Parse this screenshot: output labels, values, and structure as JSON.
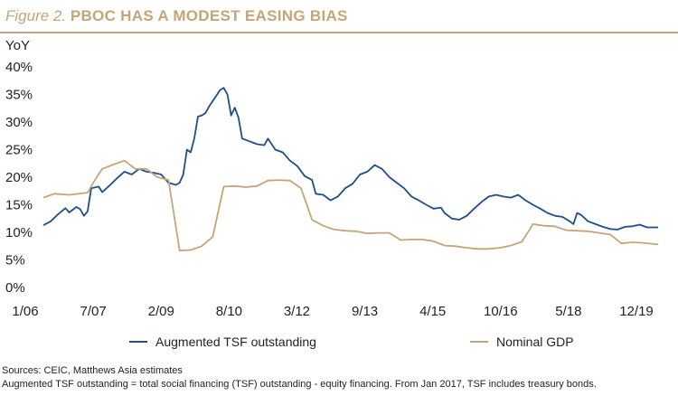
{
  "title_prefix": "Figure 2.",
  "title_main": "PBOC HAS A MODEST EASING BIAS",
  "chart_data": {
    "type": "line",
    "title": "PBOC HAS A MODEST EASING BIAS",
    "ylabel": "YoY",
    "xlabel": "",
    "ylim": [
      0,
      40
    ],
    "xlim": [
      "2006-01",
      "2019-12"
    ],
    "yticks": [
      "0%",
      "5%",
      "10%",
      "15%",
      "20%",
      "25%",
      "30%",
      "35%",
      "40%"
    ],
    "xticks": [
      "1/06",
      "7/07",
      "2/09",
      "8/10",
      "3/12",
      "9/13",
      "4/15",
      "10/16",
      "5/18",
      "12/19"
    ],
    "grid": false,
    "legend": "bottom",
    "series": [
      {
        "name": "Augmented TSF outstanding",
        "color": "#1f4e8c",
        "points": [
          [
            "2006-01",
            11.3
          ],
          [
            "2006-03",
            12.0
          ],
          [
            "2006-05",
            13.3
          ],
          [
            "2006-07",
            14.4
          ],
          [
            "2006-08",
            13.6
          ],
          [
            "2006-10",
            14.6
          ],
          [
            "2006-11",
            14.2
          ],
          [
            "2006-12",
            13.0
          ],
          [
            "2007-01",
            13.8
          ],
          [
            "2007-02",
            18.0
          ],
          [
            "2007-04",
            18.3
          ],
          [
            "2007-05",
            17.3
          ],
          [
            "2007-07",
            18.5
          ],
          [
            "2007-09",
            19.8
          ],
          [
            "2007-11",
            21.0
          ],
          [
            "2008-01",
            20.5
          ],
          [
            "2008-03",
            21.5
          ],
          [
            "2008-05",
            21.0
          ],
          [
            "2008-07",
            20.8
          ],
          [
            "2008-09",
            20.5
          ],
          [
            "2008-11",
            19.0
          ],
          [
            "2009-01",
            18.6
          ],
          [
            "2009-02",
            19.0
          ],
          [
            "2009-03",
            20.5
          ],
          [
            "2009-04",
            25.0
          ],
          [
            "2009-05",
            24.5
          ],
          [
            "2009-06",
            27.0
          ],
          [
            "2009-07",
            31.0
          ],
          [
            "2009-08",
            31.2
          ],
          [
            "2009-09",
            31.6
          ],
          [
            "2009-10",
            32.8
          ],
          [
            "2009-11",
            33.8
          ],
          [
            "2009-12",
            34.8
          ],
          [
            "2010-01",
            35.8
          ],
          [
            "2010-02",
            36.2
          ],
          [
            "2010-03",
            35.0
          ],
          [
            "2010-04",
            31.2
          ],
          [
            "2010-05",
            32.6
          ],
          [
            "2010-06",
            30.8
          ],
          [
            "2010-07",
            27.0
          ],
          [
            "2010-09",
            26.5
          ],
          [
            "2010-11",
            26.0
          ],
          [
            "2011-01",
            25.8
          ],
          [
            "2011-02",
            27.0
          ],
          [
            "2011-04",
            25.0
          ],
          [
            "2011-06",
            24.5
          ],
          [
            "2011-08",
            23.0
          ],
          [
            "2011-10",
            22.0
          ],
          [
            "2011-12",
            20.2
          ],
          [
            "2012-02",
            19.5
          ],
          [
            "2012-03",
            17.0
          ],
          [
            "2012-05",
            16.8
          ],
          [
            "2012-07",
            15.8
          ],
          [
            "2012-09",
            16.5
          ],
          [
            "2012-11",
            18.0
          ],
          [
            "2013-01",
            18.8
          ],
          [
            "2013-03",
            20.5
          ],
          [
            "2013-05",
            21.0
          ],
          [
            "2013-07",
            22.2
          ],
          [
            "2013-09",
            21.5
          ],
          [
            "2013-11",
            20.0
          ],
          [
            "2014-01",
            19.0
          ],
          [
            "2014-03",
            18.0
          ],
          [
            "2014-05",
            16.5
          ],
          [
            "2014-07",
            15.8
          ],
          [
            "2014-09",
            15.0
          ],
          [
            "2014-11",
            14.3
          ],
          [
            "2015-01",
            14.5
          ],
          [
            "2015-02",
            13.5
          ],
          [
            "2015-04",
            12.5
          ],
          [
            "2015-06",
            12.3
          ],
          [
            "2015-08",
            13.0
          ],
          [
            "2015-10",
            14.3
          ],
          [
            "2015-12",
            15.5
          ],
          [
            "2016-02",
            16.5
          ],
          [
            "2016-04",
            16.8
          ],
          [
            "2016-06",
            16.5
          ],
          [
            "2016-08",
            16.3
          ],
          [
            "2016-10",
            16.8
          ],
          [
            "2016-12",
            15.8
          ],
          [
            "2017-02",
            15.0
          ],
          [
            "2017-04",
            14.3
          ],
          [
            "2017-06",
            13.5
          ],
          [
            "2017-08",
            13.0
          ],
          [
            "2017-10",
            12.8
          ],
          [
            "2017-12",
            12.0
          ],
          [
            "2018-01",
            11.5
          ],
          [
            "2018-02",
            13.5
          ],
          [
            "2018-03",
            13.2
          ],
          [
            "2018-05",
            12.0
          ],
          [
            "2018-07",
            11.5
          ],
          [
            "2018-09",
            11.0
          ],
          [
            "2018-11",
            10.6
          ],
          [
            "2019-01",
            10.5
          ],
          [
            "2019-03",
            11.0
          ],
          [
            "2019-05",
            11.1
          ],
          [
            "2019-07",
            11.4
          ],
          [
            "2019-09",
            10.9
          ],
          [
            "2019-12",
            10.9
          ]
        ]
      },
      {
        "name": "Nominal GDP",
        "color": "#c4a577",
        "points": [
          [
            "2006-01",
            16.3
          ],
          [
            "2006-04",
            17.0
          ],
          [
            "2006-08",
            16.8
          ],
          [
            "2007-01",
            17.2
          ],
          [
            "2007-03",
            19.5
          ],
          [
            "2007-05",
            21.5
          ],
          [
            "2007-08",
            22.3
          ],
          [
            "2007-11",
            23.0
          ],
          [
            "2008-02",
            21.5
          ],
          [
            "2008-05",
            21.5
          ],
          [
            "2008-08",
            20.0
          ],
          [
            "2008-11",
            19.5
          ],
          [
            "2009-02",
            6.7
          ],
          [
            "2009-05",
            6.8
          ],
          [
            "2009-08",
            7.5
          ],
          [
            "2009-11",
            9.2
          ],
          [
            "2010-02",
            18.3
          ],
          [
            "2010-05",
            18.4
          ],
          [
            "2010-08",
            18.2
          ],
          [
            "2010-11",
            18.4
          ],
          [
            "2011-02",
            19.4
          ],
          [
            "2011-05",
            19.5
          ],
          [
            "2011-08",
            19.4
          ],
          [
            "2011-11",
            18.0
          ],
          [
            "2012-02",
            12.3
          ],
          [
            "2012-05",
            11.2
          ],
          [
            "2012-08",
            10.5
          ],
          [
            "2012-11",
            10.3
          ],
          [
            "2013-02",
            10.2
          ],
          [
            "2013-05",
            9.8
          ],
          [
            "2013-08",
            9.9
          ],
          [
            "2013-11",
            9.9
          ],
          [
            "2014-02",
            8.6
          ],
          [
            "2014-05",
            8.7
          ],
          [
            "2014-08",
            8.7
          ],
          [
            "2014-11",
            8.4
          ],
          [
            "2015-02",
            7.6
          ],
          [
            "2015-05",
            7.5
          ],
          [
            "2015-08",
            7.2
          ],
          [
            "2015-11",
            7.0
          ],
          [
            "2016-02",
            7.0
          ],
          [
            "2016-05",
            7.2
          ],
          [
            "2016-08",
            7.6
          ],
          [
            "2016-11",
            8.3
          ],
          [
            "2017-02",
            11.5
          ],
          [
            "2017-05",
            11.2
          ],
          [
            "2017-08",
            11.1
          ],
          [
            "2017-11",
            10.4
          ],
          [
            "2018-02",
            10.3
          ],
          [
            "2018-05",
            10.2
          ],
          [
            "2018-08",
            9.9
          ],
          [
            "2018-11",
            9.6
          ],
          [
            "2019-02",
            8.0
          ],
          [
            "2019-05",
            8.2
          ],
          [
            "2019-08",
            8.1
          ],
          [
            "2019-12",
            7.8
          ]
        ]
      }
    ]
  },
  "footer": {
    "sources": "Sources: CEIC, Matthews Asia estimates",
    "note": "Augmented TSF outstanding = total social financing (TSF) outstanding - equity financing. From Jan 2017, TSF includes treasury bonds."
  }
}
